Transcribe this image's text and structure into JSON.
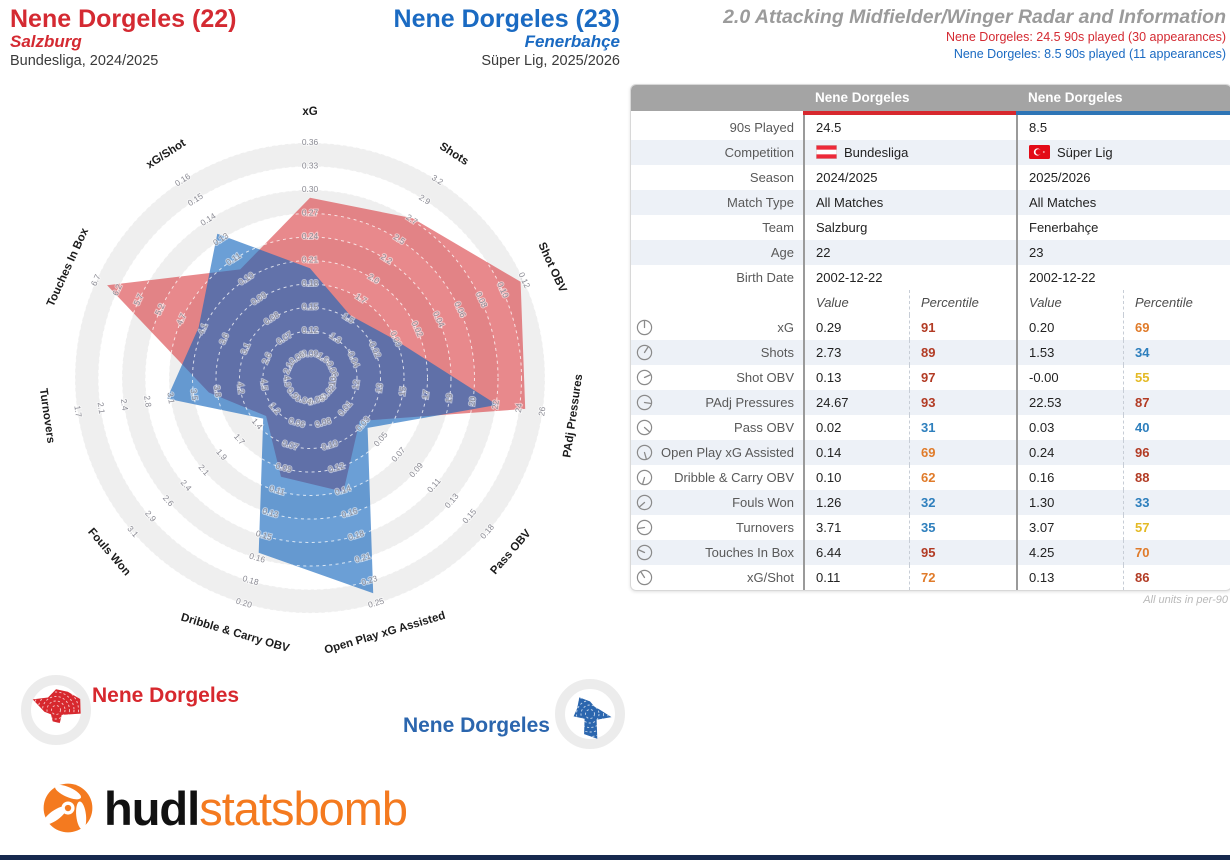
{
  "page": {
    "report_title": "2.0 Attacking Midfielder/Winger Radar and Information",
    "subtitle_red": "Nene Dorgeles: 24.5 90s played (30 appearances)",
    "subtitle_blue": "Nene Dorgeles: 8.5 90s played (11 appearances)",
    "footnote": "All units in per-90",
    "logo": {
      "hudl": "hudl",
      "statsbomb": "statsbomb"
    }
  },
  "players": {
    "a": {
      "title": "Nene Dorgeles (22)",
      "team": "Salzburg",
      "competition_line": "Bundesliga, 2024/2025"
    },
    "b": {
      "title": "Nene Dorgeles (23)",
      "team": "Fenerbahçe",
      "competition_line": "Süper Lig, 2025/2026"
    }
  },
  "legend": [
    {
      "label": "Nene Dorgeles",
      "series": "red"
    },
    {
      "label": "Nene Dorgeles",
      "series": "blue"
    }
  ],
  "table": {
    "col_headers": [
      "Nene Dorgeles",
      "Nene Dorgeles"
    ],
    "info_rows": [
      {
        "label": "90s Played",
        "a": "24.5",
        "b": "8.5"
      },
      {
        "label": "Competition",
        "a": "Bundesliga",
        "b": "Süper Lig",
        "a_flag": "austria-flag",
        "b_flag": "turkey-flag"
      },
      {
        "label": "Season",
        "a": "2024/2025",
        "b": "2025/2026"
      },
      {
        "label": "Match Type",
        "a": "All Matches",
        "b": "All Matches"
      },
      {
        "label": "Team",
        "a": "Salzburg",
        "b": "Fenerbahçe"
      },
      {
        "label": "Age",
        "a": "22",
        "b": "23"
      },
      {
        "label": "Birth Date",
        "a": "2002-12-22",
        "b": "2002-12-22"
      }
    ],
    "sub_headers": [
      "Value",
      "Percentile",
      "Value",
      "Percentile"
    ],
    "stat_rows": [
      {
        "label": "xG",
        "a_value": "0.29",
        "a_pct": 91,
        "b_value": "0.20",
        "b_pct": 69
      },
      {
        "label": "Shots",
        "a_value": "2.73",
        "a_pct": 89,
        "b_value": "1.53",
        "b_pct": 34
      },
      {
        "label": "Shot OBV",
        "a_value": "0.13",
        "a_pct": 97,
        "b_value": "-0.00",
        "b_pct": 55
      },
      {
        "label": "PAdj Pressures",
        "a_value": "24.67",
        "a_pct": 93,
        "b_value": "22.53",
        "b_pct": 87
      },
      {
        "label": "Pass OBV",
        "a_value": "0.02",
        "a_pct": 31,
        "b_value": "0.03",
        "b_pct": 40
      },
      {
        "label": "Open Play xG Assisted",
        "a_value": "0.14",
        "a_pct": 69,
        "b_value": "0.24",
        "b_pct": 96
      },
      {
        "label": "Dribble & Carry OBV",
        "a_value": "0.10",
        "a_pct": 62,
        "b_value": "0.16",
        "b_pct": 88
      },
      {
        "label": "Fouls Won",
        "a_value": "1.26",
        "a_pct": 32,
        "b_value": "1.30",
        "b_pct": 33
      },
      {
        "label": "Turnovers",
        "a_value": "3.71",
        "a_pct": 35,
        "b_value": "3.07",
        "b_pct": 57
      },
      {
        "label": "Touches In Box",
        "a_value": "6.44",
        "a_pct": 95,
        "b_value": "4.25",
        "b_pct": 70
      },
      {
        "label": "xG/Shot",
        "a_value": "0.11",
        "a_pct": 72,
        "b_value": "0.13",
        "b_pct": 86
      }
    ]
  },
  "chart_data": {
    "type": "radar",
    "title": "2.0 Attacking Midfielder/Winger Radar",
    "rings": 10,
    "units_note": "All units in per-90",
    "axes": [
      {
        "label": "xG",
        "lo": 0.06,
        "hi": 0.36,
        "ticks": [
          "0.09",
          "0.12",
          "0.15",
          "0.18",
          "0.21",
          "0.24",
          "0.27",
          "0.30",
          "0.33",
          "0.36"
        ]
      },
      {
        "label": "Shots",
        "lo": 0.756,
        "hi": 3.2,
        "ticks": [
          "1.0",
          "1.3",
          "1.5",
          "1.7",
          "2.0",
          "2.2",
          "2.5",
          "2.7",
          "2.9",
          "3.2"
        ]
      },
      {
        "label": "Shot OBV",
        "lo": -0.08,
        "hi": 0.12,
        "ticks": [
          "-0.06",
          "-0.04",
          "-0.02",
          "0.00",
          "0.02",
          "0.04",
          "0.06",
          "0.08",
          "0.10",
          "0.12"
        ]
      },
      {
        "label": "PAdj Pressures",
        "lo": 8.22,
        "hi": 26,
        "ticks": [
          "10",
          "12",
          "13",
          "15",
          "17",
          "19",
          "20",
          "22",
          "24",
          "26"
        ]
      },
      {
        "label": "Pass OBV",
        "lo": -0.042,
        "hi": 0.18,
        "ticks": [
          "-0.02",
          "0.01",
          "0.03",
          "0.05",
          "0.07",
          "0.09",
          "0.11",
          "0.13",
          "0.15",
          "0.18"
        ]
      },
      {
        "label": "Open Play xG Assisted",
        "lo": 0.028,
        "hi": 0.25,
        "ticks": [
          "0.05",
          "0.08",
          "0.10",
          "0.12",
          "0.14",
          "0.16",
          "0.18",
          "0.21",
          "0.23",
          "0.25"
        ]
      },
      {
        "label": "Dribble & Carry OBV",
        "lo": 0.022,
        "hi": 0.2,
        "ticks": [
          "0.04",
          "0.06",
          "0.07",
          "0.09",
          "0.11",
          "0.13",
          "0.15",
          "0.16",
          "0.18",
          "0.20"
        ]
      },
      {
        "label": "Fouls Won",
        "lo": 0.656,
        "hi": 3.1,
        "ticks": [
          "0.9",
          "1.2",
          "1.4",
          "1.7",
          "1.9",
          "2.1",
          "2.4",
          "2.6",
          "2.9",
          "3.1"
        ]
      },
      {
        "label": "Turnovers",
        "lo": 5.256,
        "hi": 1.7,
        "ticks": [
          "4.9",
          "4.5",
          "4.2",
          "3.8",
          "3.5",
          "3.1",
          "2.8",
          "2.4",
          "2.1",
          "1.7"
        ]
      },
      {
        "label": "Touches In Box",
        "lo": 1.589,
        "hi": 6.7,
        "ticks": [
          "2.1",
          "2.6",
          "3.1",
          "3.6",
          "4.1",
          "4.7",
          "5.2",
          "5.7",
          "6.2",
          "6.7"
        ]
      },
      {
        "label": "xG/Shot",
        "lo": 0.049,
        "hi": 0.16,
        "ticks": [
          "0.06",
          "0.07",
          "0.08",
          "0.09",
          "0.10",
          "0.11",
          "0.13",
          "0.14",
          "0.15",
          "0.16"
        ]
      }
    ],
    "series": [
      {
        "name": "Nene Dorgeles (Salzburg, 2024/2025)",
        "key": "red",
        "values": [
          0.29,
          2.73,
          0.13,
          24.67,
          0.02,
          0.14,
          0.1,
          1.26,
          3.71,
          6.44,
          0.11
        ],
        "percentiles": [
          91,
          89,
          97,
          93,
          31,
          69,
          62,
          32,
          35,
          95,
          72
        ]
      },
      {
        "name": "Nene Dorgeles (Fenerbahçe, 2025/2026)",
        "key": "blue",
        "values": [
          0.2,
          1.53,
          -0.001,
          22.53,
          0.03,
          0.24,
          0.16,
          1.3,
          3.07,
          4.25,
          0.13
        ],
        "percentiles": [
          69,
          34,
          55,
          87,
          40,
          96,
          88,
          33,
          57,
          70,
          86
        ]
      }
    ]
  },
  "colors": {
    "red_text": "#d42a32",
    "blue_text": "#1a6ac2",
    "red_fill": "#da4145",
    "blue_fill": "#1064bd",
    "legend_red": "#d7282e",
    "legend_blue": "#2b66ae",
    "band_gray": "#efefef",
    "pct_high": "#b23b24",
    "pct_mid": "#e07b2a",
    "pct_yellow": "#e4ba25",
    "pct_low": "#2e7fbd",
    "header_bar_red": "#d7282e",
    "header_bar_blue": "#2e75b6",
    "logo_orange": "#f47a1f",
    "bottom_bar": "#16294e"
  }
}
